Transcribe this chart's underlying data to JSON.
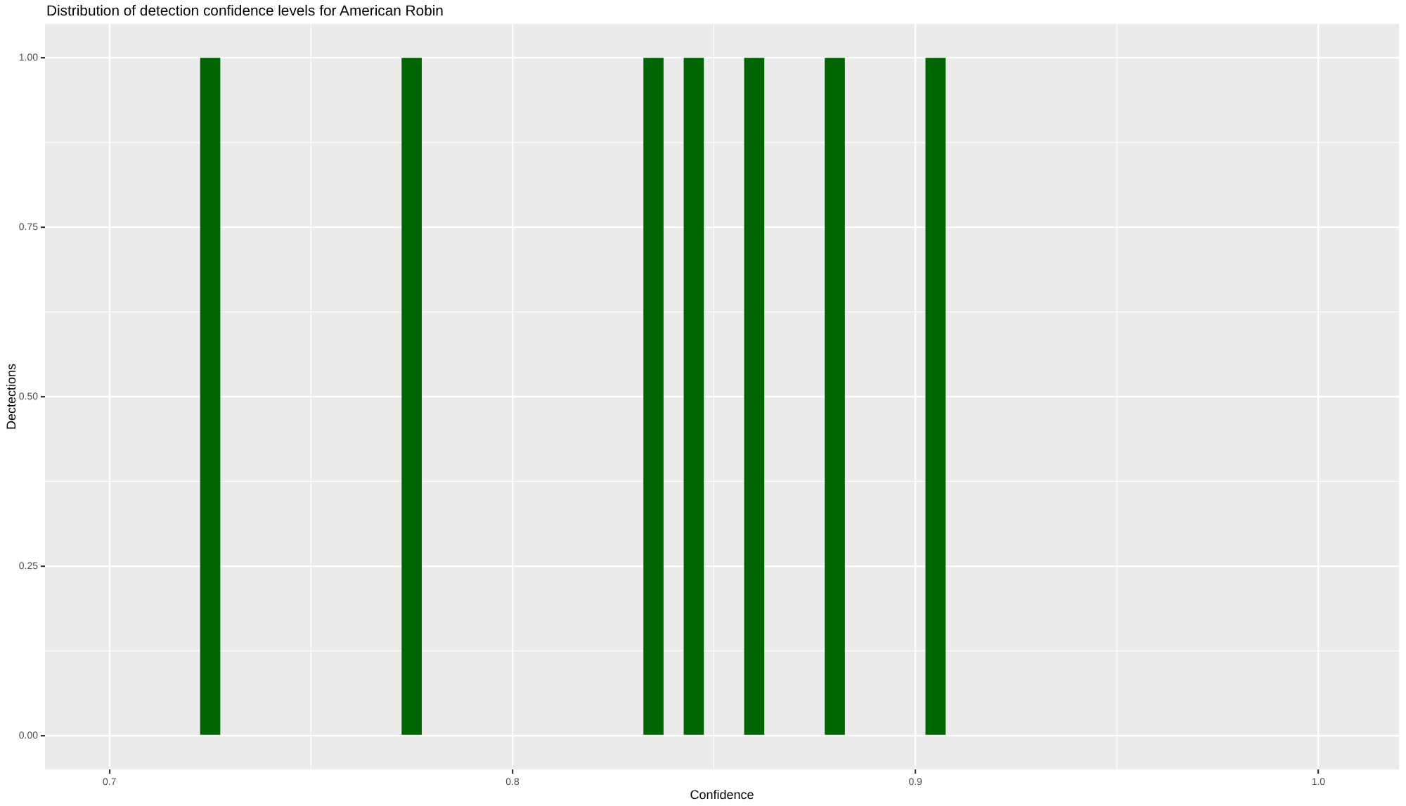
{
  "chart_data": {
    "type": "histogram",
    "title": "Distribution of detection confidence levels for American Robin",
    "xlabel": "Confidence",
    "ylabel": "Dectections",
    "bins": [
      0.7225,
      0.7275,
      0.7325,
      0.7375,
      0.7425,
      0.7475,
      0.7525,
      0.7575,
      0.7625,
      0.7675,
      0.7725,
      0.7775,
      0.7825,
      0.7875,
      0.7925,
      0.7975,
      0.8025,
      0.8075,
      0.8125,
      0.8175,
      0.8225,
      0.8275,
      0.8325,
      0.8375,
      0.8425,
      0.8475,
      0.8525,
      0.8575,
      0.8625,
      0.8675,
      0.8725,
      0.8775,
      0.8825,
      0.8875,
      0.8925,
      0.8975,
      0.9025,
      0.9075
    ],
    "values": [
      1,
      0,
      0,
      0,
      0,
      0,
      0,
      0,
      0,
      0,
      1,
      0,
      0,
      0,
      0,
      0,
      0,
      0,
      0,
      0,
      0,
      0,
      1,
      0,
      1,
      0,
      0,
      1,
      0,
      0,
      0,
      1,
      0,
      0,
      0,
      0,
      1
    ],
    "color": "#006400",
    "xlim": [
      0.684,
      1.02
    ],
    "xticks": [
      0.7,
      0.8,
      0.9,
      {
        "value": 1,
        "label": "1.0"
      }
    ],
    "ylim": [
      -0.05,
      1.05
    ],
    "yticks": [
      {
        "value": 0,
        "label": "0.00"
      },
      0.25,
      {
        "value": 0.5,
        "label": "0.50"
      },
      0.75,
      {
        "value": 1,
        "label": "1.00"
      }
    ],
    "grid": true
  }
}
